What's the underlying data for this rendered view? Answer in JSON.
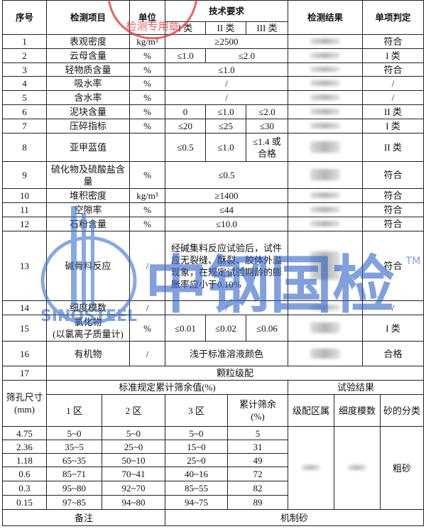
{
  "stamp": "检测专用章",
  "watermark": {
    "cn": "中钢国检",
    "en": "SINOSTEEL",
    "tm": "TM"
  },
  "table": {
    "header": [
      "序号",
      "检测项目",
      "单位",
      "技术要求",
      "I 类",
      "II 类",
      "III 类",
      "检测结果",
      "单项判定"
    ],
    "rows": [
      [
        1,
        "表观密度",
        "kg/m³",
        "≥2500",
        "符合"
      ],
      [
        2,
        "云母含量",
        "%",
        "≤1.0",
        "≤2.0",
        "I 类"
      ],
      [
        3,
        "轻物质含量",
        "%",
        "≤1.0",
        "符合"
      ],
      [
        4,
        "吸水率",
        "%",
        "/",
        "/"
      ],
      [
        5,
        "含水率",
        "%",
        "/",
        "/"
      ],
      [
        6,
        "泥块含量",
        "%",
        "0",
        "≤1.0",
        "≤2.0",
        "II 类"
      ],
      [
        7,
        "压碎指标",
        "%",
        "≤20",
        "≤25",
        "≤30",
        "I 类"
      ],
      [
        8,
        "亚甲蓝值",
        "≤0.5",
        "≤1.0",
        "≤1.4 或合格",
        "II 类"
      ],
      [
        9,
        "硫化物及硫酸盐含量",
        "%",
        "≤0.5",
        "符合"
      ],
      [
        10,
        "堆积密度",
        "kg/m³",
        "≥1400",
        "符合"
      ],
      [
        11,
        "空隙率",
        "%",
        "≤44",
        "符合"
      ],
      [
        12,
        "石粉含量",
        "%",
        "≤10.0",
        "符合"
      ],
      [
        13,
        "碱骨料反应",
        "/",
        "经碱集料反应试验后，试件应无裂缝、酥裂、胶体外溢现象，在规定试验期龄的膨胀率应小于0.10%",
        "符合"
      ],
      [
        14,
        "细度模数",
        "/",
        "/",
        "/"
      ],
      [
        15,
        "氯化物\n(以氯离子质量计)",
        "%",
        "≤0.01",
        "≤0.02",
        "≤0.06",
        "I 类"
      ],
      [
        16,
        "有机物",
        "/",
        "浅于标准溶液颜色",
        "合格"
      ],
      [
        17,
        "颗粒级配"
      ]
    ]
  },
  "grading": {
    "header": [
      "筛孔尺寸\n(mm)",
      "标准规定累计筛余值(%)",
      "1 区",
      "2 区",
      "3 区",
      "累计筛余\n(%)",
      "试验结果",
      "级配区属",
      "细度模数",
      "砂的分类"
    ],
    "rows": [
      [
        "4.75",
        "5~0",
        "5~0",
        "5~0",
        5
      ],
      [
        "2.36",
        "35~5",
        "25~0",
        "15~0",
        31
      ],
      [
        "1.18",
        "65~35",
        "50~10",
        "25~0",
        49
      ],
      [
        "0.6",
        "85~71",
        "70~41",
        "40~16",
        72
      ],
      [
        "0.3",
        "95~80",
        "92~70",
        "85~55",
        82
      ],
      [
        "0.15",
        "97~85",
        "94~80",
        "94~75",
        89
      ]
    ],
    "classification": "粗砂",
    "note_label": "备注",
    "note": "机制砂"
  }
}
